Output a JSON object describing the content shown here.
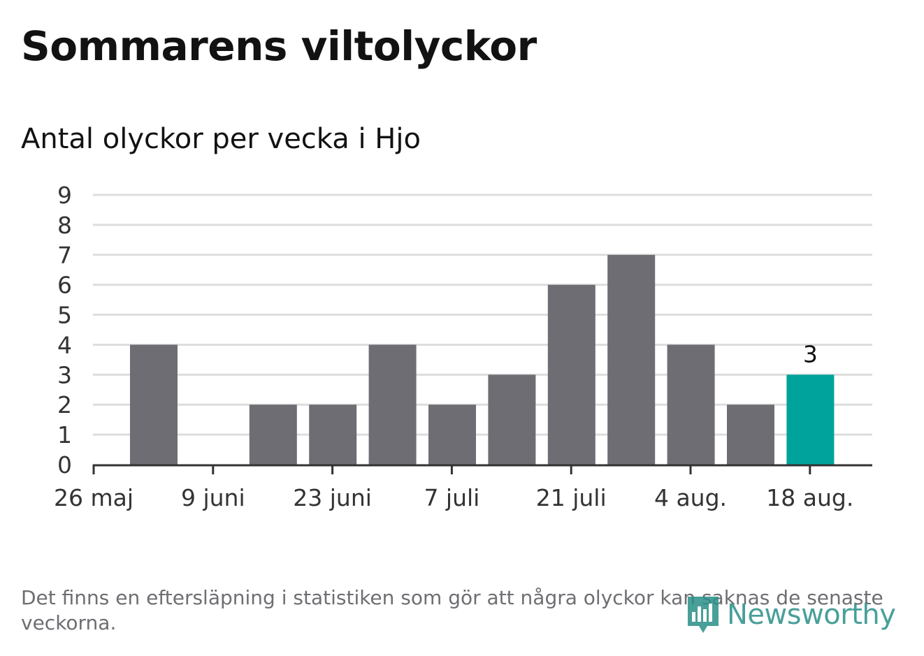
{
  "title": "Sommarens viltolyckor",
  "subtitle": "Antal olyckor per vecka i Hjo",
  "footnote": "Det finns en eftersläpning i statistiken som gör att några olyckor kan saknas de senaste veckorna.",
  "brand": {
    "name": "Newsworthy",
    "icon": "newsworthy-logo-icon"
  },
  "colors": {
    "bar": "#6e6d73",
    "highlight": "#00a39b",
    "grid": "#dddddd",
    "axis": "#333333",
    "brand": "#2a8f88"
  },
  "chart_data": {
    "type": "bar",
    "x": [
      "2 juni",
      "9 juni",
      "16 juni",
      "23 juni",
      "30 juni",
      "7 juli",
      "14 juli",
      "21 juli",
      "28 juli",
      "4 aug.",
      "11 aug.",
      "18 aug."
    ],
    "values": [
      4,
      0,
      2,
      2,
      4,
      2,
      3,
      6,
      7,
      4,
      2,
      3
    ],
    "highlight_index": 11,
    "highlight_label": "3",
    "xticks": [
      "26 maj",
      "9 juni",
      "23 juni",
      "7 juli",
      "21 juli",
      "4 aug.",
      "18 aug."
    ],
    "yticks": [
      "0",
      "1",
      "2",
      "3",
      "4",
      "5",
      "6",
      "7",
      "8",
      "9"
    ],
    "ylim": [
      0,
      9
    ],
    "grid": true
  }
}
